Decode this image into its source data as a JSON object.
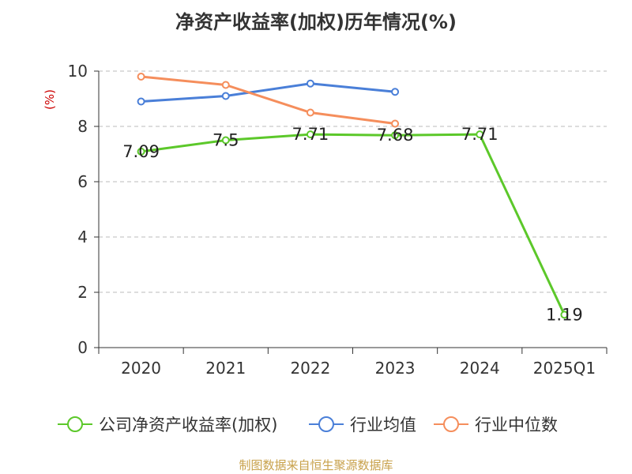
{
  "chart_data": {
    "type": "line",
    "title": "净资产收益率(加权)历年情况(%)",
    "ylabel": "(%)",
    "ylim": [
      0,
      10
    ],
    "yticks": [
      "0",
      "2",
      "4",
      "6",
      "8",
      "10"
    ],
    "categories": [
      "2020",
      "2021",
      "2022",
      "2023",
      "2024",
      "2025Q1"
    ],
    "grid": true,
    "legend_position": "bottom",
    "series": [
      {
        "name": "公司净资产收益率(加权)",
        "color": "#5cc82a",
        "values": [
          7.09,
          7.5,
          7.71,
          7.68,
          7.71,
          1.19
        ],
        "labels": [
          "7.09",
          "7.5",
          "7.71",
          "7.68",
          "7.71",
          "1.19"
        ]
      },
      {
        "name": "行业均值",
        "color": "#4a7fd8",
        "values": [
          8.9,
          9.1,
          9.55,
          9.25,
          null,
          null
        ]
      },
      {
        "name": "行业中位数",
        "color": "#f58e5c",
        "values": [
          9.8,
          9.5,
          8.5,
          8.1,
          null,
          null
        ]
      }
    ]
  },
  "source": "制图数据来自恒生聚源数据库"
}
